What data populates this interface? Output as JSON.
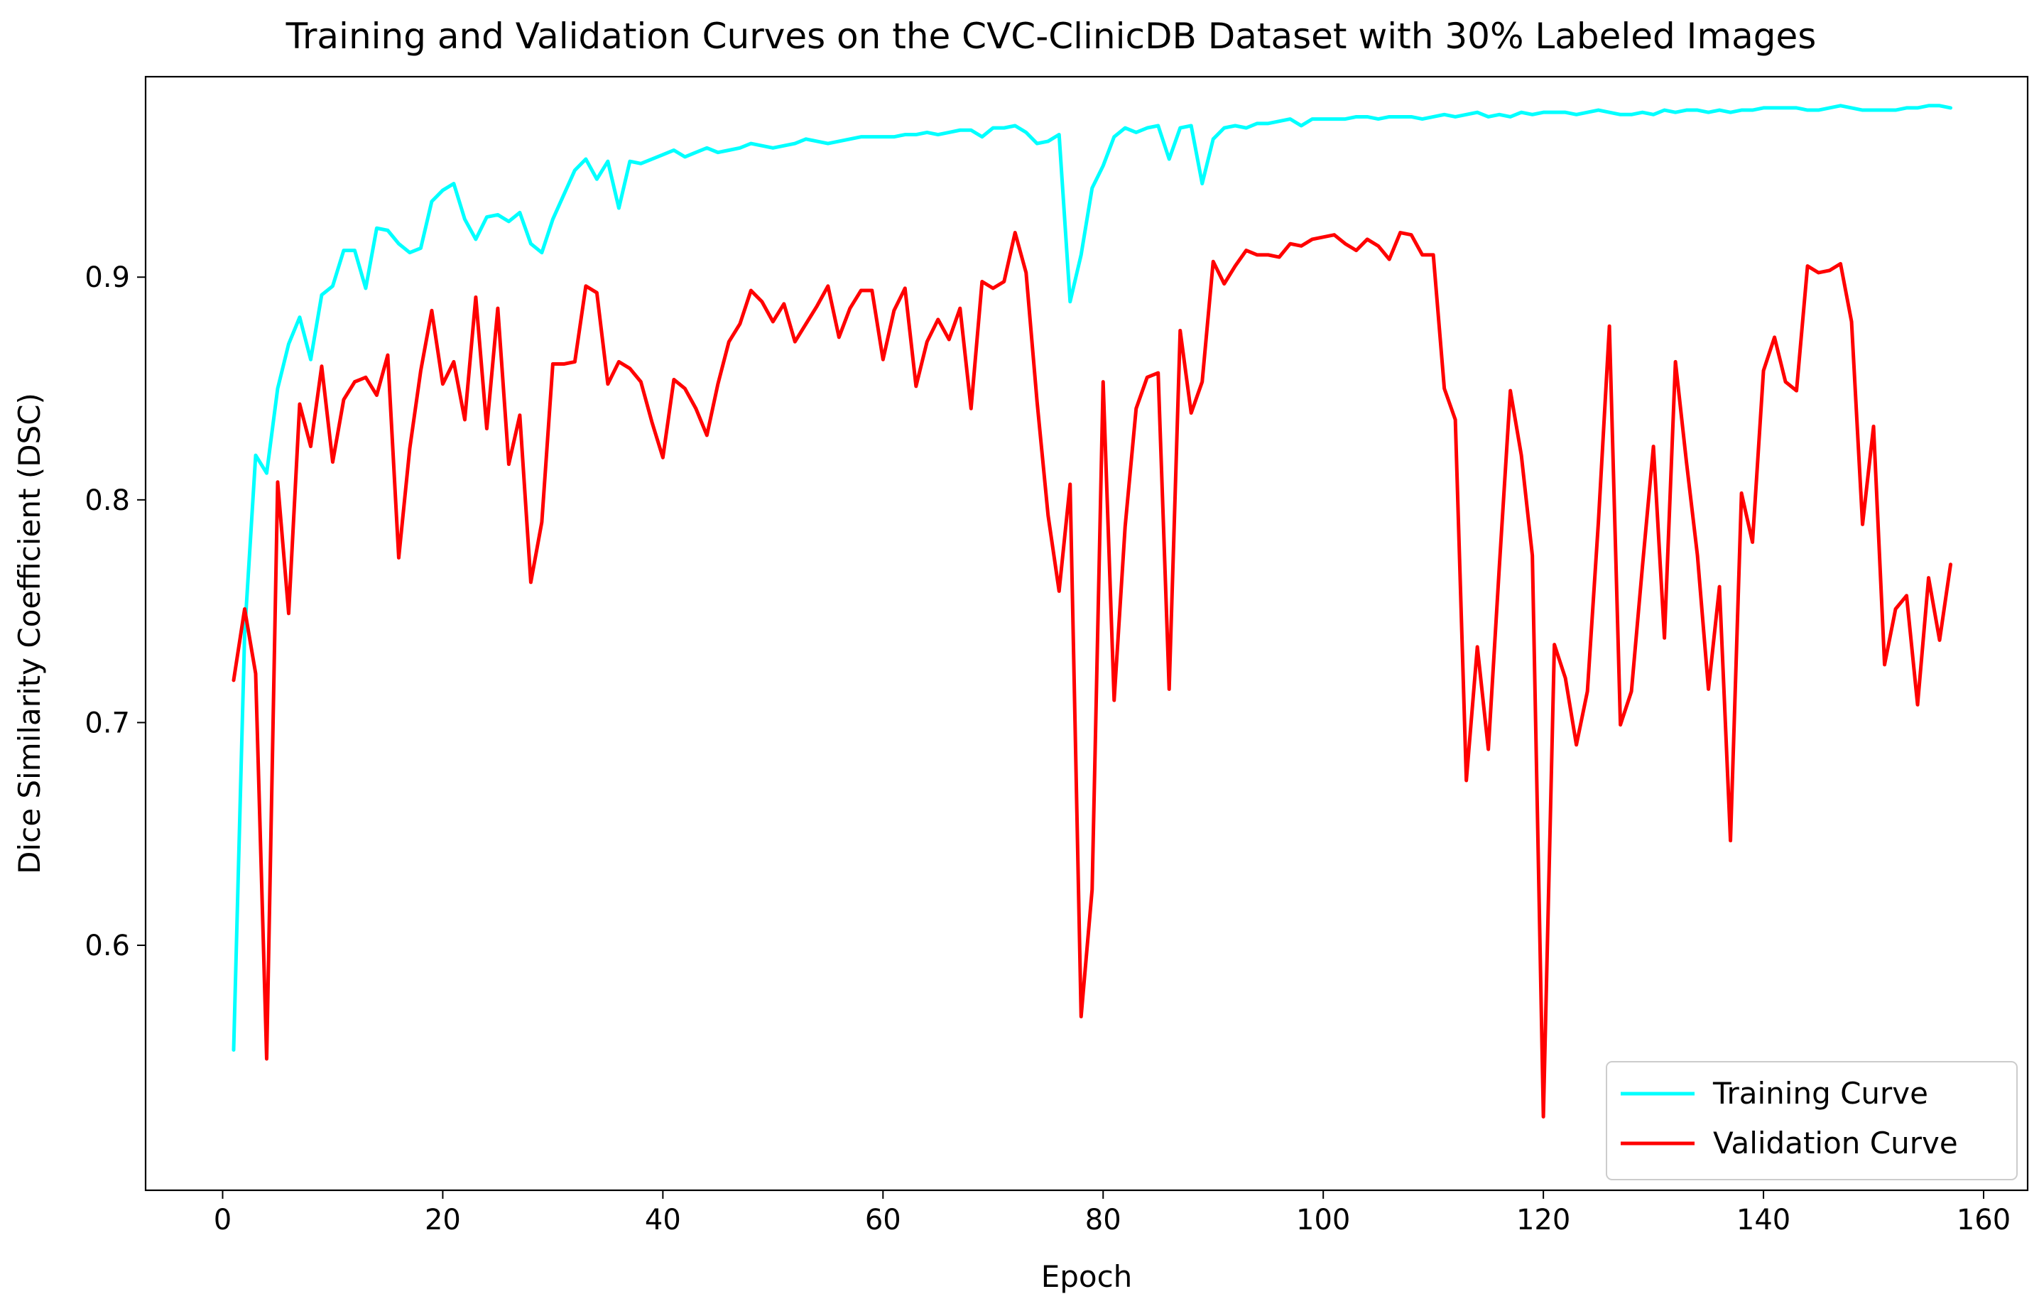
{
  "chart_data": {
    "type": "line",
    "title": "Training and Validation Curves on the CVC-ClinicDB Dataset with 30% Labeled Images",
    "xlabel": "Epoch",
    "ylabel": "Dice Similarity Coefficient (DSC)",
    "xlim": [
      -7,
      164
    ],
    "ylim": [
      0.49,
      0.99
    ],
    "xticks": [
      0,
      20,
      40,
      60,
      80,
      100,
      120,
      140,
      160
    ],
    "yticks": [
      0.6,
      0.7,
      0.8,
      0.9
    ],
    "xtick_labels": [
      "0",
      "20",
      "40",
      "60",
      "80",
      "100",
      "120",
      "140",
      "160"
    ],
    "ytick_labels": [
      "0.6",
      "0.7",
      "0.8",
      "0.9"
    ],
    "grid": false,
    "legend_position": "lower-right",
    "x": [
      1,
      2,
      3,
      4,
      5,
      6,
      7,
      8,
      9,
      10,
      11,
      12,
      13,
      14,
      15,
      16,
      17,
      18,
      19,
      20,
      21,
      22,
      23,
      24,
      25,
      26,
      27,
      28,
      29,
      30,
      31,
      32,
      33,
      34,
      35,
      36,
      37,
      38,
      39,
      40,
      41,
      42,
      43,
      44,
      45,
      46,
      47,
      48,
      49,
      50,
      51,
      52,
      53,
      54,
      55,
      56,
      57,
      58,
      59,
      60,
      61,
      62,
      63,
      64,
      65,
      66,
      67,
      68,
      69,
      70,
      71,
      72,
      73,
      74,
      75,
      76,
      77,
      78,
      79,
      80,
      81,
      82,
      83,
      84,
      85,
      86,
      87,
      88,
      89,
      90,
      91,
      92,
      93,
      94,
      95,
      96,
      97,
      98,
      99,
      100,
      101,
      102,
      103,
      104,
      105,
      106,
      107,
      108,
      109,
      110,
      111,
      112,
      113,
      114,
      115,
      116,
      117,
      118,
      119,
      120,
      121,
      122,
      123,
      124,
      125,
      126,
      127,
      128,
      129,
      130,
      131,
      132,
      133,
      134,
      135,
      136,
      137,
      138,
      139,
      140,
      141,
      142,
      143,
      144,
      145,
      146,
      147,
      148,
      149,
      150,
      151,
      152,
      153,
      154,
      155,
      156,
      157
    ],
    "series": [
      {
        "name": "Training Curve",
        "color": "#00ffff",
        "values": [
          0.553,
          0.74,
          0.82,
          0.812,
          0.85,
          0.87,
          0.882,
          0.863,
          0.892,
          0.896,
          0.912,
          0.912,
          0.895,
          0.922,
          0.921,
          0.915,
          0.911,
          0.913,
          0.934,
          0.939,
          0.942,
          0.926,
          0.917,
          0.927,
          0.928,
          0.925,
          0.929,
          0.915,
          0.911,
          0.926,
          0.937,
          0.948,
          0.953,
          0.944,
          0.952,
          0.931,
          0.952,
          0.951,
          0.953,
          0.955,
          0.957,
          0.954,
          0.956,
          0.958,
          0.956,
          0.957,
          0.958,
          0.96,
          0.959,
          0.958,
          0.959,
          0.96,
          0.962,
          0.961,
          0.96,
          0.961,
          0.962,
          0.963,
          0.963,
          0.963,
          0.963,
          0.964,
          0.964,
          0.965,
          0.964,
          0.965,
          0.966,
          0.966,
          0.963,
          0.967,
          0.967,
          0.968,
          0.965,
          0.96,
          0.961,
          0.964,
          0.889,
          0.91,
          0.94,
          0.95,
          0.963,
          0.967,
          0.965,
          0.967,
          0.968,
          0.953,
          0.967,
          0.968,
          0.942,
          0.962,
          0.967,
          0.968,
          0.967,
          0.969,
          0.969,
          0.97,
          0.971,
          0.968,
          0.971,
          0.971,
          0.971,
          0.971,
          0.972,
          0.972,
          0.971,
          0.972,
          0.972,
          0.972,
          0.971,
          0.972,
          0.973,
          0.972,
          0.973,
          0.974,
          0.972,
          0.973,
          0.972,
          0.974,
          0.973,
          0.974,
          0.974,
          0.974,
          0.973,
          0.974,
          0.975,
          0.974,
          0.973,
          0.973,
          0.974,
          0.973,
          0.975,
          0.974,
          0.975,
          0.975,
          0.974,
          0.975,
          0.974,
          0.975,
          0.975,
          0.976,
          0.976,
          0.976,
          0.976,
          0.975,
          0.975,
          0.976,
          0.977,
          0.976,
          0.975,
          0.975,
          0.975,
          0.975,
          0.976,
          0.976,
          0.977,
          0.977,
          0.976
        ]
      },
      {
        "name": "Validation Curve",
        "color": "#ff0000",
        "values": [
          0.719,
          0.751,
          0.722,
          0.549,
          0.808,
          0.749,
          0.843,
          0.824,
          0.86,
          0.817,
          0.845,
          0.853,
          0.855,
          0.847,
          0.865,
          0.774,
          0.823,
          0.858,
          0.885,
          0.852,
          0.862,
          0.836,
          0.891,
          0.832,
          0.886,
          0.816,
          0.838,
          0.763,
          0.79,
          0.861,
          0.861,
          0.862,
          0.896,
          0.893,
          0.852,
          0.862,
          0.859,
          0.853,
          0.835,
          0.819,
          0.854,
          0.85,
          0.841,
          0.829,
          0.852,
          0.871,
          0.879,
          0.894,
          0.889,
          0.88,
          0.888,
          0.871,
          0.879,
          0.887,
          0.896,
          0.873,
          0.886,
          0.894,
          0.894,
          0.863,
          0.885,
          0.895,
          0.851,
          0.871,
          0.881,
          0.872,
          0.886,
          0.841,
          0.898,
          0.895,
          0.898,
          0.92,
          0.902,
          0.844,
          0.793,
          0.759,
          0.807,
          0.568,
          0.625,
          0.853,
          0.71,
          0.788,
          0.841,
          0.855,
          0.857,
          0.715,
          0.876,
          0.839,
          0.853,
          0.907,
          0.897,
          0.905,
          0.912,
          0.91,
          0.91,
          0.909,
          0.915,
          0.914,
          0.917,
          0.918,
          0.919,
          0.915,
          0.912,
          0.917,
          0.914,
          0.908,
          0.92,
          0.919,
          0.91,
          0.91,
          0.85,
          0.836,
          0.674,
          0.734,
          0.688,
          0.77,
          0.849,
          0.82,
          0.775,
          0.523,
          0.735,
          0.72,
          0.69,
          0.714,
          0.79,
          0.878,
          0.699,
          0.714,
          0.77,
          0.824,
          0.738,
          0.862,
          0.817,
          0.775,
          0.715,
          0.761,
          0.647,
          0.803,
          0.781,
          0.858,
          0.873,
          0.853,
          0.849,
          0.905,
          0.902,
          0.903,
          0.906,
          0.88,
          0.789,
          0.833,
          0.726,
          0.751,
          0.757,
          0.708,
          0.765,
          0.737,
          0.771
        ]
      }
    ]
  }
}
